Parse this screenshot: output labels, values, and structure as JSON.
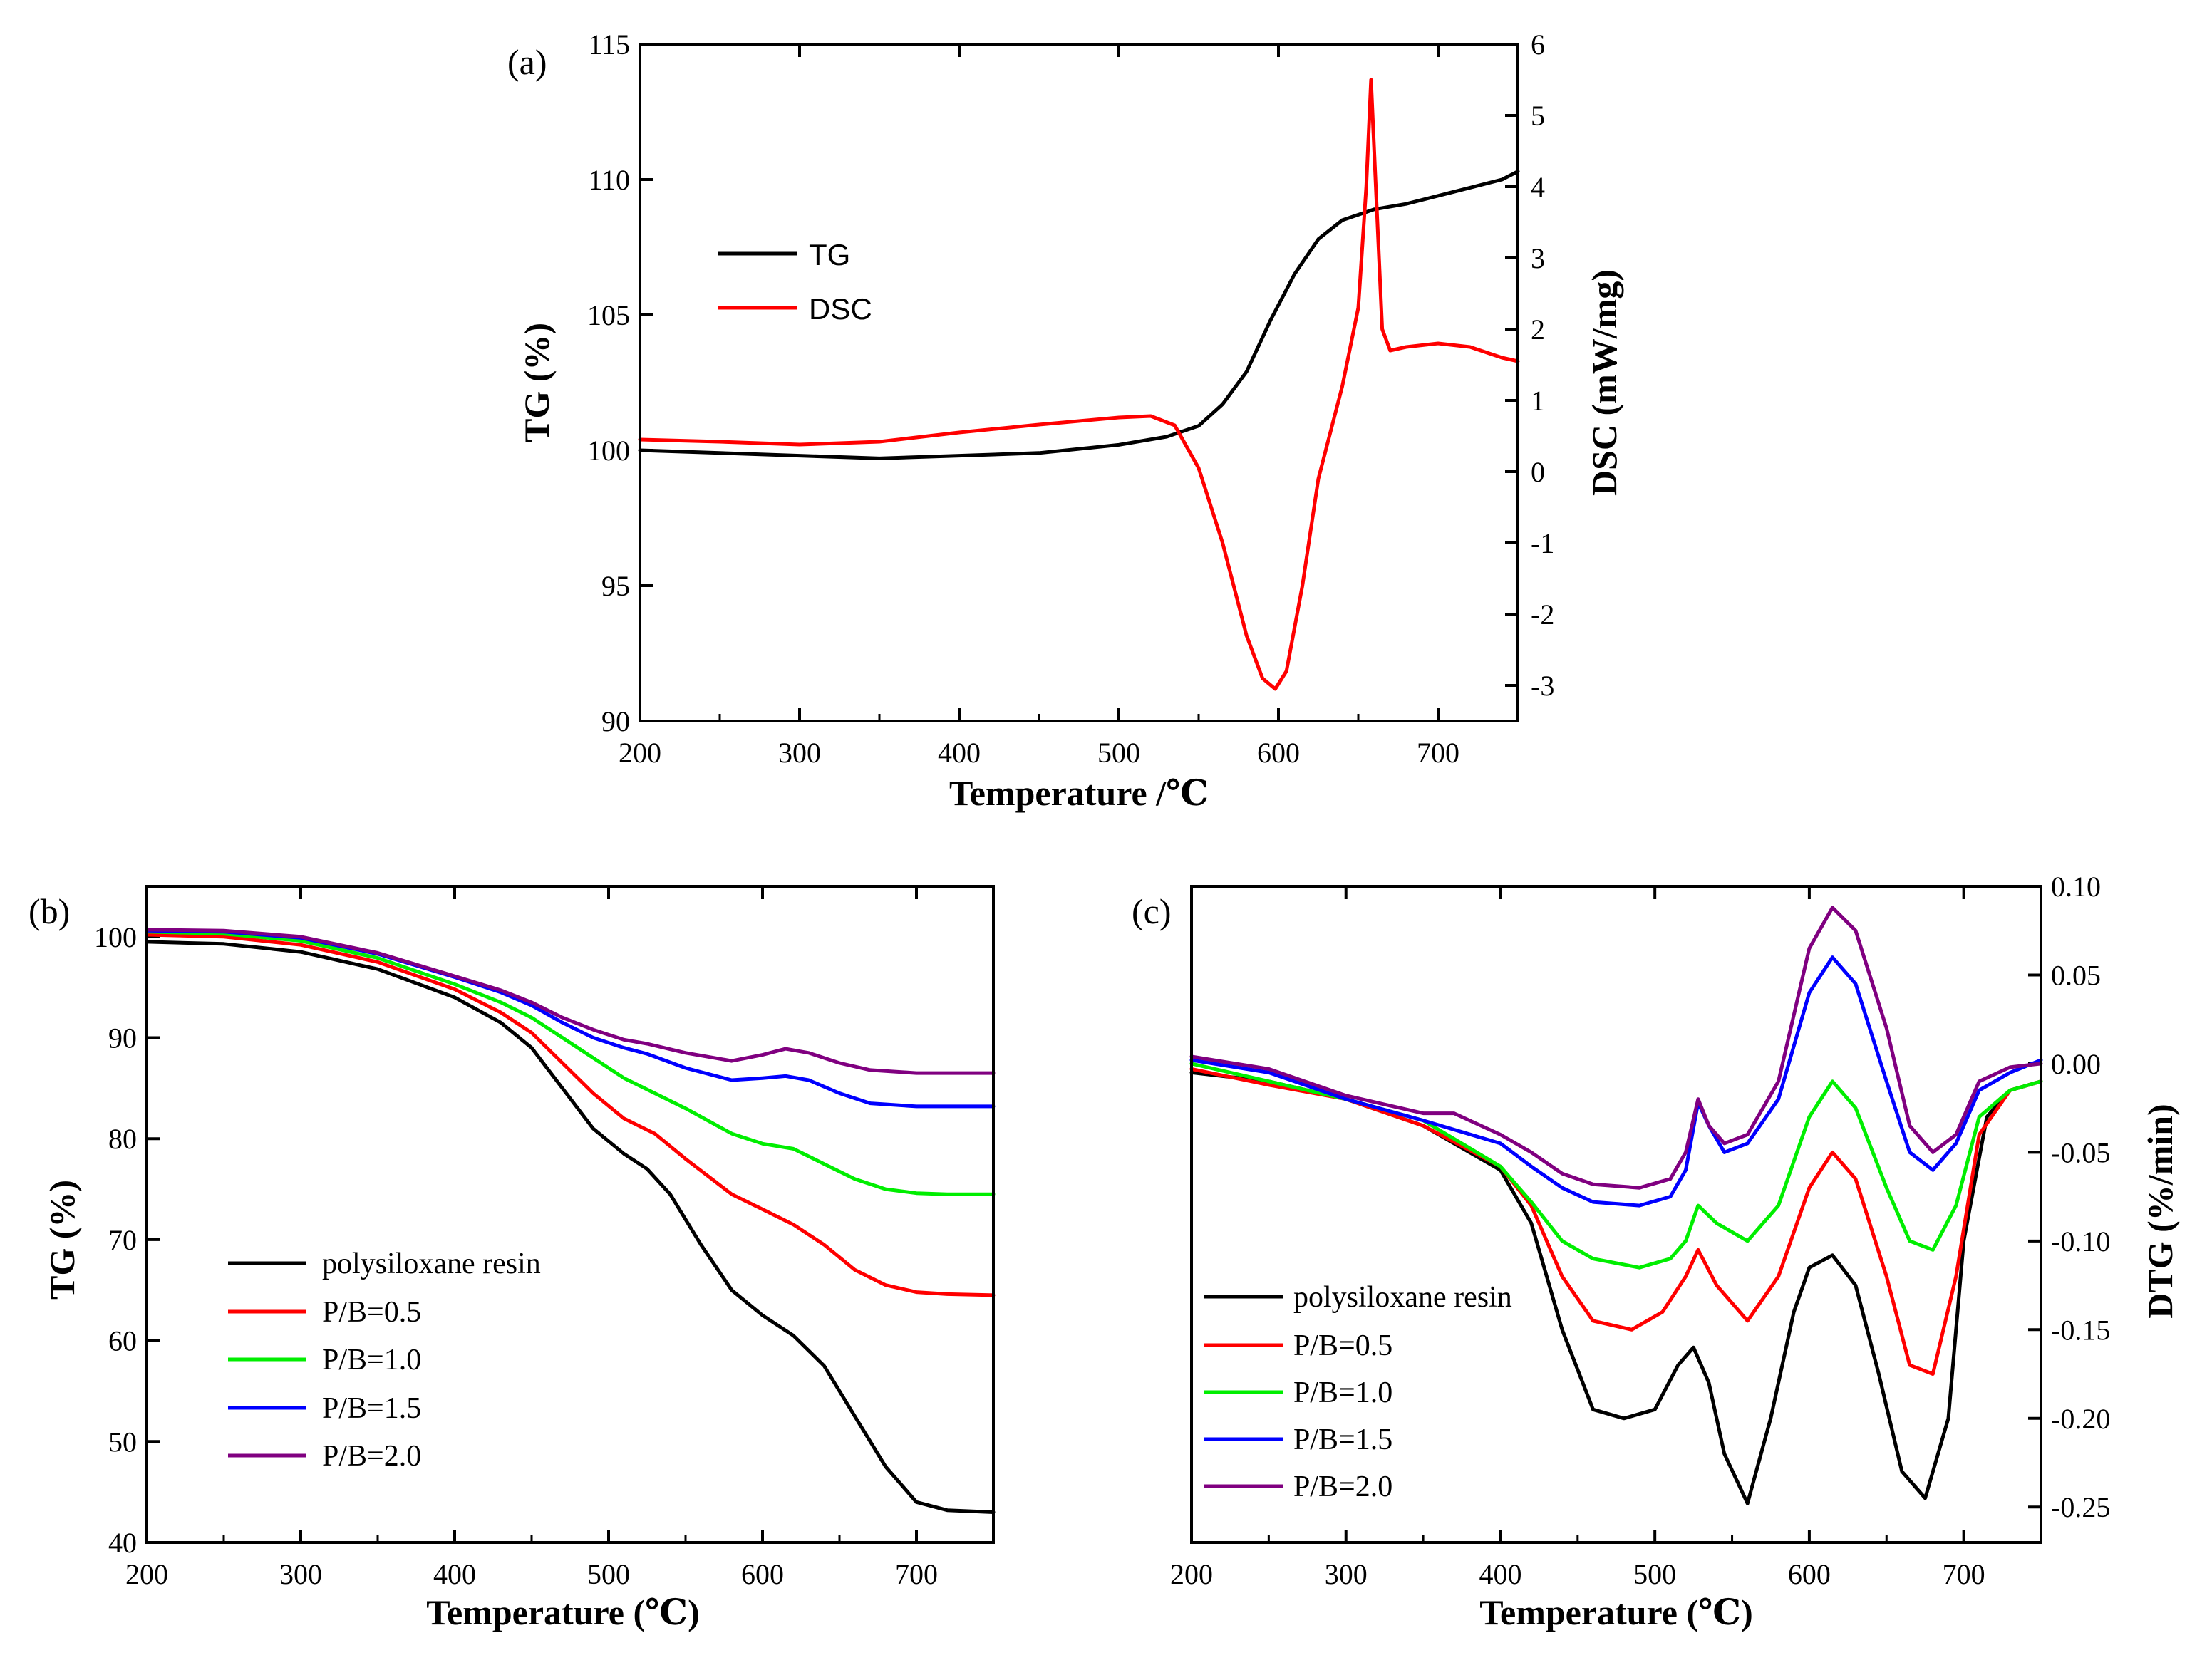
{
  "chart_data": [
    {
      "panel_label": "(a)",
      "type": "line",
      "xlabel": "Temperature /℃",
      "ylabel": "TG (%)",
      "y2label": "DSC (mW/mg)",
      "xlim": [
        200,
        750
      ],
      "ylim": [
        90,
        115
      ],
      "y2lim": [
        -3.5,
        6
      ],
      "xticks": [
        "200",
        "300",
        "400",
        "500",
        "600",
        "700"
      ],
      "yticks": [
        "90",
        "95",
        "100",
        "105",
        "110",
        "115"
      ],
      "y2ticks": [
        "-3",
        "-2",
        "-1",
        "0",
        "1",
        "2",
        "3",
        "4",
        "5",
        "6"
      ],
      "legend_position": "upper-left",
      "series": [
        {
          "name": "TG",
          "axis": "left",
          "color": "#000000",
          "x": [
            200,
            250,
            300,
            350,
            400,
            450,
            500,
            530,
            550,
            565,
            580,
            595,
            610,
            625,
            640,
            660,
            680,
            700,
            720,
            740,
            750
          ],
          "y": [
            100.0,
            99.9,
            99.8,
            99.7,
            99.8,
            99.9,
            100.2,
            100.5,
            100.9,
            101.7,
            102.9,
            104.8,
            106.5,
            107.8,
            108.5,
            108.9,
            109.1,
            109.4,
            109.7,
            110.0,
            110.3
          ]
        },
        {
          "name": "DSC",
          "axis": "right",
          "color": "#ff0000",
          "x": [
            200,
            250,
            300,
            350,
            400,
            450,
            500,
            520,
            535,
            550,
            565,
            580,
            590,
            598,
            605,
            615,
            625,
            640,
            650,
            655,
            658,
            661,
            665,
            670,
            680,
            700,
            720,
            740,
            750
          ],
          "y": [
            0.45,
            0.42,
            0.38,
            0.42,
            0.55,
            0.66,
            0.76,
            0.78,
            0.65,
            0.05,
            -1.0,
            -2.3,
            -2.9,
            -3.05,
            -2.8,
            -1.6,
            -0.1,
            1.2,
            2.3,
            4.0,
            5.5,
            4.0,
            2.0,
            1.7,
            1.75,
            1.8,
            1.75,
            1.6,
            1.55
          ]
        }
      ]
    },
    {
      "panel_label": "(b)",
      "type": "line",
      "xlabel": "Temperature (℃)",
      "ylabel": "TG (%)",
      "xlim": [
        200,
        750
      ],
      "ylim": [
        40,
        105
      ],
      "xticks": [
        "200",
        "300",
        "400",
        "500",
        "600",
        "700"
      ],
      "yticks": [
        "40",
        "50",
        "60",
        "70",
        "80",
        "90",
        "100"
      ],
      "legend_position": "lower-left",
      "series": [
        {
          "name": "polysiloxane resin",
          "color": "#000000",
          "x": [
            200,
            250,
            300,
            350,
            400,
            430,
            450,
            470,
            490,
            510,
            525,
            540,
            560,
            580,
            600,
            620,
            640,
            660,
            680,
            700,
            720,
            750
          ],
          "y": [
            99.5,
            99.3,
            98.5,
            96.8,
            94.0,
            91.5,
            89.0,
            85.0,
            81.0,
            78.5,
            77.0,
            74.5,
            69.5,
            65.0,
            62.5,
            60.5,
            57.5,
            52.5,
            47.5,
            44.0,
            43.2,
            43.0
          ]
        },
        {
          "name": "P/B=0.5",
          "color": "#ff0000",
          "x": [
            200,
            250,
            300,
            350,
            400,
            430,
            450,
            470,
            490,
            510,
            530,
            550,
            580,
            600,
            620,
            640,
            660,
            680,
            700,
            720,
            750
          ],
          "y": [
            100.2,
            100.0,
            99.2,
            97.5,
            94.8,
            92.5,
            90.5,
            87.5,
            84.5,
            82.0,
            80.5,
            78.0,
            74.5,
            73.0,
            71.5,
            69.5,
            67.0,
            65.5,
            64.8,
            64.6,
            64.5
          ]
        },
        {
          "name": "P/B=1.0",
          "color": "#00ee00",
          "x": [
            200,
            250,
            300,
            350,
            400,
            430,
            450,
            470,
            490,
            510,
            530,
            550,
            580,
            600,
            620,
            640,
            660,
            680,
            700,
            720,
            750
          ],
          "y": [
            100.5,
            100.3,
            99.6,
            97.9,
            95.3,
            93.5,
            92.0,
            90.0,
            88.0,
            86.0,
            84.5,
            83.0,
            80.5,
            79.5,
            79.0,
            77.5,
            76.0,
            75.0,
            74.6,
            74.5,
            74.5
          ]
        },
        {
          "name": "P/B=1.5",
          "color": "#0000ff",
          "x": [
            200,
            250,
            300,
            350,
            400,
            430,
            450,
            470,
            490,
            510,
            525,
            550,
            580,
            600,
            615,
            630,
            650,
            670,
            700,
            720,
            750
          ],
          "y": [
            100.6,
            100.5,
            99.9,
            98.3,
            96.0,
            94.5,
            93.2,
            91.5,
            90.0,
            89.0,
            88.4,
            87.0,
            85.8,
            86.0,
            86.2,
            85.8,
            84.5,
            83.5,
            83.2,
            83.2,
            83.2
          ]
        },
        {
          "name": "P/B=2.0",
          "color": "#800080",
          "x": [
            200,
            250,
            300,
            350,
            400,
            430,
            450,
            470,
            490,
            510,
            525,
            550,
            580,
            600,
            615,
            630,
            650,
            670,
            700,
            720,
            750
          ],
          "y": [
            100.7,
            100.6,
            100.0,
            98.4,
            96.1,
            94.7,
            93.5,
            92.0,
            90.8,
            89.8,
            89.4,
            88.5,
            87.7,
            88.3,
            88.9,
            88.5,
            87.5,
            86.8,
            86.5,
            86.5,
            86.5
          ]
        }
      ]
    },
    {
      "panel_label": "(c)",
      "type": "line",
      "xlabel": "Temperature (℃)",
      "ylabel": "DTG (%/min)",
      "ylabel_side": "right",
      "xlim": [
        200,
        750
      ],
      "ylim": [
        -0.27,
        0.1
      ],
      "xticks": [
        "200",
        "300",
        "400",
        "500",
        "600",
        "700"
      ],
      "yticks": [
        "-0.25",
        "-0.20",
        "-0.15",
        "-0.10",
        "-0.05",
        "0.00",
        "0.05",
        "0.10"
      ],
      "legend_position": "lower-left",
      "series": [
        {
          "name": "polysiloxane resin",
          "color": "#000000",
          "x": [
            200,
            250,
            300,
            350,
            400,
            420,
            440,
            460,
            480,
            500,
            515,
            525,
            535,
            545,
            560,
            575,
            590,
            600,
            615,
            630,
            645,
            660,
            675,
            690,
            700,
            715,
            730,
            750
          ],
          "y": [
            -0.005,
            -0.01,
            -0.02,
            -0.035,
            -0.06,
            -0.09,
            -0.15,
            -0.195,
            -0.2,
            -0.195,
            -0.17,
            -0.16,
            -0.18,
            -0.22,
            -0.248,
            -0.2,
            -0.14,
            -0.115,
            -0.108,
            -0.125,
            -0.175,
            -0.23,
            -0.245,
            -0.2,
            -0.1,
            -0.03,
            -0.015,
            -0.01
          ]
        },
        {
          "name": "P/B=0.5",
          "color": "#ff0000",
          "x": [
            200,
            250,
            300,
            350,
            400,
            420,
            440,
            460,
            485,
            505,
            520,
            528,
            540,
            560,
            580,
            600,
            615,
            630,
            650,
            665,
            680,
            695,
            710,
            730,
            750
          ],
          "y": [
            -0.003,
            -0.012,
            -0.02,
            -0.035,
            -0.058,
            -0.08,
            -0.12,
            -0.145,
            -0.15,
            -0.14,
            -0.12,
            -0.105,
            -0.125,
            -0.145,
            -0.12,
            -0.07,
            -0.05,
            -0.065,
            -0.12,
            -0.17,
            -0.175,
            -0.12,
            -0.04,
            -0.015,
            -0.01
          ]
        },
        {
          "name": "P/B=1.0",
          "color": "#00ee00",
          "x": [
            200,
            250,
            300,
            350,
            400,
            420,
            440,
            460,
            490,
            510,
            520,
            528,
            540,
            560,
            580,
            600,
            615,
            630,
            650,
            665,
            680,
            695,
            710,
            730,
            750
          ],
          "y": [
            0.0,
            -0.01,
            -0.02,
            -0.032,
            -0.058,
            -0.078,
            -0.1,
            -0.11,
            -0.115,
            -0.11,
            -0.1,
            -0.08,
            -0.09,
            -0.1,
            -0.08,
            -0.03,
            -0.01,
            -0.025,
            -0.07,
            -0.1,
            -0.105,
            -0.08,
            -0.03,
            -0.015,
            -0.01
          ]
        },
        {
          "name": "P/B=1.5",
          "color": "#0000ff",
          "x": [
            200,
            250,
            300,
            350,
            400,
            420,
            440,
            460,
            490,
            510,
            520,
            528,
            535,
            545,
            560,
            580,
            600,
            615,
            630,
            650,
            665,
            680,
            695,
            710,
            730,
            750
          ],
          "y": [
            0.002,
            -0.005,
            -0.02,
            -0.032,
            -0.045,
            -0.058,
            -0.07,
            -0.078,
            -0.08,
            -0.075,
            -0.06,
            -0.022,
            -0.035,
            -0.05,
            -0.045,
            -0.02,
            0.04,
            0.06,
            0.045,
            -0.01,
            -0.05,
            -0.06,
            -0.045,
            -0.015,
            -0.005,
            0.002
          ]
        },
        {
          "name": "P/B=2.0",
          "color": "#800080",
          "x": [
            200,
            250,
            300,
            350,
            370,
            400,
            420,
            440,
            460,
            490,
            510,
            520,
            528,
            535,
            545,
            560,
            580,
            600,
            615,
            630,
            650,
            665,
            680,
            695,
            710,
            730,
            750
          ],
          "y": [
            0.004,
            -0.003,
            -0.018,
            -0.028,
            -0.028,
            -0.04,
            -0.05,
            -0.062,
            -0.068,
            -0.07,
            -0.065,
            -0.05,
            -0.02,
            -0.035,
            -0.045,
            -0.04,
            -0.01,
            0.065,
            0.088,
            0.075,
            0.02,
            -0.035,
            -0.05,
            -0.04,
            -0.01,
            -0.002,
            0.0
          ]
        }
      ]
    }
  ]
}
